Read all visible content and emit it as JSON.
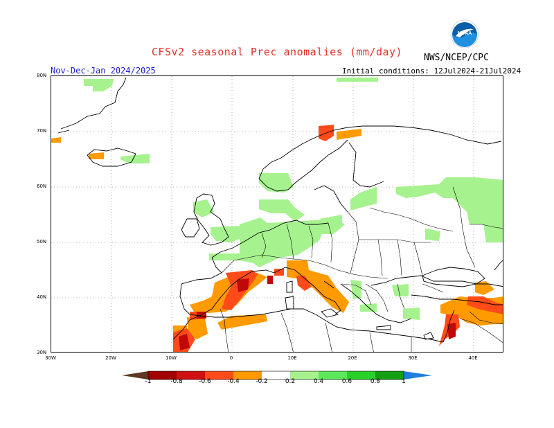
{
  "header": {
    "title": "CFSv2 seasonal Prec anomalies (mm/day)",
    "agency": "NWS/NCEP/CPC",
    "logo_text": "NOAA",
    "period": "Nov-Dec-Jan 2024/2025",
    "initial_conditions": "Initial conditions: 12Jul2024-21Jul2024"
  },
  "map": {
    "lat_labels": [
      "80N",
      "70N",
      "60N",
      "50N",
      "40N",
      "30N"
    ],
    "lon_labels": [
      "30W",
      "20W",
      "10W",
      "0",
      "10E",
      "20E",
      "30E",
      "40E"
    ],
    "gridlines": true,
    "lon_range": [
      -30,
      45
    ],
    "lat_range": [
      30,
      80
    ]
  },
  "colorbar": {
    "labels": [
      "-1",
      "-0.8",
      "-0.6",
      "-0.4",
      "-0.2",
      "0.2",
      "0.4",
      "0.6",
      "0.8",
      "1"
    ],
    "colors": [
      "#5c3a24",
      "#a00000",
      "#d01010",
      "#ff4a1a",
      "#ff9a00",
      "#ffffff",
      "#a6f28f",
      "#5ce85a",
      "#2ad02a",
      "#14a014",
      "#1e7fe0"
    ]
  }
}
